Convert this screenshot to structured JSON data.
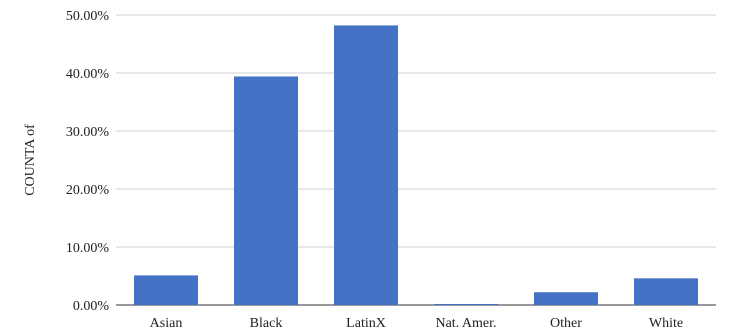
{
  "chart_data": {
    "type": "bar",
    "categories": [
      "Asian",
      "Black",
      "LatinX",
      "Nat. Amer.",
      "Other",
      "White"
    ],
    "values": [
      5.1,
      39.4,
      48.2,
      0.1,
      2.2,
      4.6
    ],
    "ylabel": "COUNTA of",
    "xlabel": "",
    "ylim": [
      0,
      50
    ],
    "yticks": [
      "0.00%",
      "10.00%",
      "20.00%",
      "30.00%",
      "40.00%",
      "50.00%"
    ],
    "grid": true,
    "legend": "none",
    "bar_color": "#4472c4"
  }
}
